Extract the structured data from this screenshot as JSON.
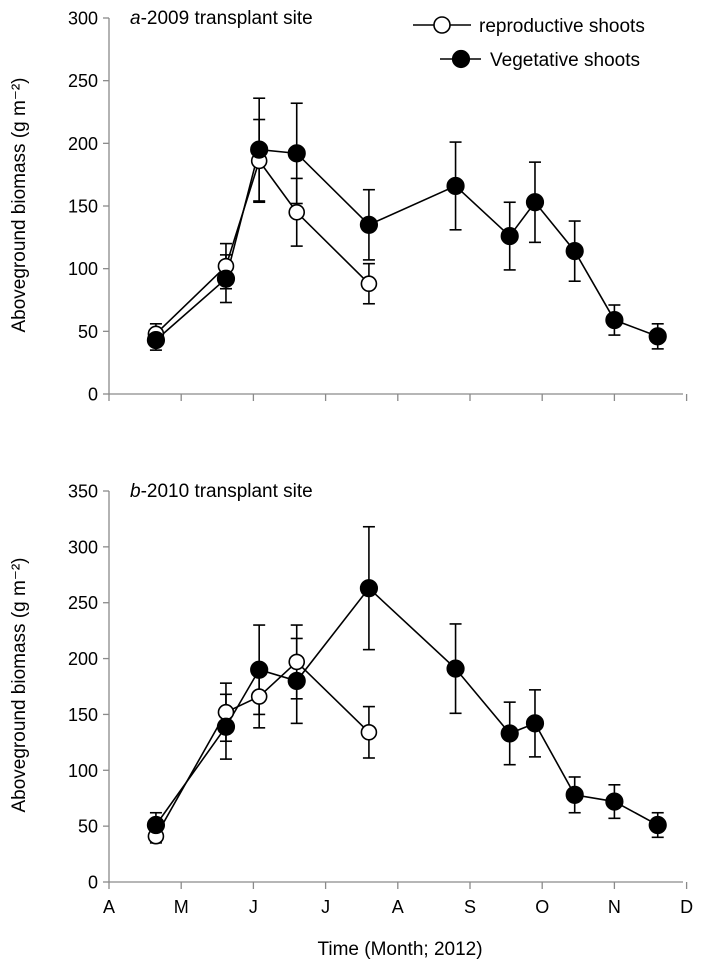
{
  "chart_data": [
    {
      "type": "line",
      "title_prefix": "a",
      "title_rest": "-2009 transplant site",
      "ylabel": "Aboveground biomass (g m⁻²)",
      "ylim": [
        0,
        300
      ],
      "yticks": [
        0,
        50,
        100,
        150,
        200,
        250,
        300
      ],
      "xlim": [
        0,
        7
      ],
      "legend_position": "top-right",
      "series": [
        {
          "name": "reproductive shoots",
          "marker": "open-circle",
          "points": [
            {
              "x": 0.65,
              "y": 48,
              "err": 8
            },
            {
              "x": 1.62,
              "y": 102,
              "err": 18
            },
            {
              "x": 2.08,
              "y": 186,
              "err": 33
            },
            {
              "x": 2.6,
              "y": 145,
              "err": 27
            },
            {
              "x": 3.6,
              "y": 88,
              "err": 16
            }
          ]
        },
        {
          "name": "Vegetative shoots",
          "marker": "filled-circle",
          "points": [
            {
              "x": 0.65,
              "y": 43,
              "err": 8
            },
            {
              "x": 1.62,
              "y": 92,
              "err": 19
            },
            {
              "x": 2.08,
              "y": 195,
              "err": 41
            },
            {
              "x": 2.6,
              "y": 192,
              "err": 40
            },
            {
              "x": 3.6,
              "y": 135,
              "err": 28
            },
            {
              "x": 4.8,
              "y": 166,
              "err": 35
            },
            {
              "x": 5.55,
              "y": 126,
              "err": 27
            },
            {
              "x": 5.9,
              "y": 153,
              "err": 32
            },
            {
              "x": 6.45,
              "y": 114,
              "err": 24
            },
            {
              "x": 7.0,
              "y": 59,
              "err": 12
            },
            {
              "x": 7.6,
              "y": 46,
              "err": 10
            }
          ]
        }
      ]
    },
    {
      "type": "line",
      "title_prefix": "b",
      "title_rest": "-2010 transplant site",
      "ylabel": "Aboveground biomass (g m⁻²)",
      "xlabel": "Time (Month; 2012)",
      "ylim": [
        0,
        350
      ],
      "yticks": [
        0,
        50,
        100,
        150,
        200,
        250,
        300,
        350
      ],
      "xlim": [
        0,
        7
      ],
      "xticks": [
        "A",
        "M",
        "J",
        "J",
        "A",
        "S",
        "O",
        "N",
        "D"
      ],
      "series": [
        {
          "name": "reproductive shoots",
          "marker": "open-circle",
          "points": [
            {
              "x": 0.65,
              "y": 41,
              "err": 6
            },
            {
              "x": 1.62,
              "y": 152,
              "err": 26
            },
            {
              "x": 2.08,
              "y": 166,
              "err": 28
            },
            {
              "x": 2.6,
              "y": 197,
              "err": 33
            },
            {
              "x": 3.6,
              "y": 134,
              "err": 23
            }
          ]
        },
        {
          "name": "Vegetative shoots",
          "marker": "filled-circle",
          "points": [
            {
              "x": 0.65,
              "y": 51,
              "err": 11
            },
            {
              "x": 1.62,
              "y": 139,
              "err": 29
            },
            {
              "x": 2.08,
              "y": 190,
              "err": 40
            },
            {
              "x": 2.6,
              "y": 180,
              "err": 38
            },
            {
              "x": 3.6,
              "y": 263,
              "err": 55
            },
            {
              "x": 4.8,
              "y": 191,
              "err": 40
            },
            {
              "x": 5.55,
              "y": 133,
              "err": 28
            },
            {
              "x": 5.9,
              "y": 142,
              "err": 30
            },
            {
              "x": 6.45,
              "y": 78,
              "err": 16
            },
            {
              "x": 7.0,
              "y": 72,
              "err": 15
            },
            {
              "x": 7.6,
              "y": 51,
              "err": 11
            }
          ]
        }
      ]
    }
  ]
}
